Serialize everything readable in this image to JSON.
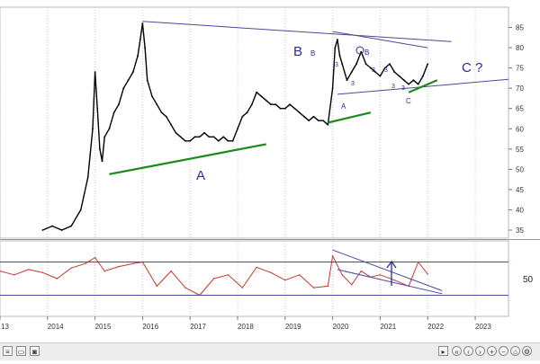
{
  "chart_data": [
    {
      "type": "line",
      "series_type": "candlestick-price",
      "xlim": [
        2013.0,
        2023.7
      ],
      "ylim": [
        33,
        90
      ],
      "y_ticks": [
        35,
        40,
        45,
        50,
        55,
        60,
        65,
        70,
        75,
        80,
        85
      ],
      "grid": "vertical-dotted-at-years",
      "series": [
        {
          "color": "#000000",
          "x": [
            2013.9,
            2014.1,
            2014.3,
            2014.5,
            2014.7,
            2014.85,
            2014.95,
            2015.0,
            2015.05,
            2015.1,
            2015.15,
            2015.2,
            2015.3,
            2015.4,
            2015.5,
            2015.6,
            2015.7,
            2015.8,
            2015.9,
            2015.95,
            2016.0,
            2016.05,
            2016.1,
            2016.2,
            2016.3,
            2016.4,
            2016.5,
            2016.6,
            2016.7,
            2016.8,
            2016.9,
            2017.0,
            2017.1,
            2017.2,
            2017.3,
            2017.4,
            2017.5,
            2017.6,
            2017.7,
            2017.8,
            2017.9,
            2018.0,
            2018.1,
            2018.2,
            2018.3,
            2018.4,
            2018.5,
            2018.6,
            2018.7,
            2018.8,
            2018.9,
            2019.0,
            2019.1,
            2019.2,
            2019.3,
            2019.4,
            2019.5,
            2019.6,
            2019.7,
            2019.8,
            2019.9,
            2020.0,
            2020.05,
            2020.1,
            2020.15,
            2020.2,
            2020.3,
            2020.4,
            2020.5,
            2020.6,
            2020.7,
            2020.8,
            2020.9,
            2021.0,
            2021.1,
            2021.2,
            2021.3,
            2021.4,
            2021.5,
            2021.6,
            2021.7,
            2021.8,
            2021.9,
            2022.0
          ],
          "y": [
            35,
            36,
            35,
            36,
            40,
            48,
            60,
            74,
            65,
            55,
            52,
            58,
            60,
            64,
            66,
            70,
            72,
            74,
            78,
            82,
            86,
            80,
            72,
            68,
            66,
            64,
            63,
            61,
            59,
            58,
            57,
            57,
            58,
            58,
            59,
            58,
            58,
            57,
            58,
            57,
            57,
            60,
            63,
            64,
            66,
            69,
            68,
            67,
            66,
            66,
            65,
            65,
            66,
            65,
            64,
            63,
            62,
            63,
            62,
            62,
            61,
            70,
            80,
            82,
            78,
            76,
            72,
            74,
            76,
            79,
            76,
            75,
            74,
            73,
            75,
            76,
            74,
            73,
            72,
            71,
            72,
            71,
            73,
            76
          ]
        },
        {
          "color": "#4a4a9a",
          "x": [
            2016.0,
            2022.5
          ],
          "y": [
            86.5,
            81.5
          ]
        },
        {
          "color": "#4a4a9a",
          "x": [
            2020.0,
            2022.0
          ],
          "y": [
            84,
            80
          ]
        },
        {
          "color": "#4a4a9a",
          "x": [
            2020.1,
            2023.7
          ],
          "y": [
            68.5,
            72.2
          ]
        },
        {
          "color": "#1a8a1a",
          "x": [
            2015.3,
            2018.6
          ],
          "y": [
            48.8,
            56.2
          ]
        },
        {
          "color": "#1a8a1a",
          "x": [
            2019.9,
            2020.8
          ],
          "y": [
            61.5,
            64
          ]
        },
        {
          "color": "#1a8a1a",
          "x": [
            2021.6,
            2022.2
          ],
          "y": [
            69,
            72
          ]
        }
      ]
    },
    {
      "type": "line",
      "series_type": "oscillator",
      "xlim": [
        2013.0,
        2023.7
      ],
      "ylim": [
        0,
        100
      ],
      "y_ticks": [
        50
      ],
      "x_ticks": [
        "13",
        "2014",
        "2015",
        "2016",
        "2017",
        "2018",
        "2019",
        "2020",
        "2021",
        "2022",
        "2023"
      ],
      "series": [
        {
          "color": "#c0392b",
          "x": [
            2013.0,
            2013.3,
            2013.6,
            2013.9,
            2014.2,
            2014.5,
            2014.8,
            2015.0,
            2015.2,
            2015.5,
            2015.8,
            2016.0,
            2016.3,
            2016.6,
            2016.9,
            2017.2,
            2017.5,
            2017.8,
            2018.1,
            2018.4,
            2018.7,
            2019.0,
            2019.3,
            2019.6,
            2019.9,
            2020.0,
            2020.2,
            2020.4,
            2020.6,
            2020.8,
            2021.0,
            2021.3,
            2021.6,
            2021.8,
            2022.0
          ],
          "y": [
            60,
            55,
            62,
            58,
            50,
            64,
            70,
            78,
            60,
            66,
            70,
            72,
            40,
            60,
            38,
            28,
            50,
            55,
            38,
            65,
            58,
            48,
            55,
            38,
            40,
            80,
            55,
            42,
            60,
            52,
            55,
            48,
            40,
            72,
            56
          ]
        },
        {
          "color": "#4a4a9a",
          "x": [
            2013.0,
            2023.7
          ],
          "y": [
            72,
            72
          ]
        },
        {
          "color": "#4a4a9a",
          "x": [
            2013.0,
            2023.7
          ],
          "y": [
            28,
            28
          ]
        },
        {
          "color": "#4a4a9a",
          "x": [
            2020.0,
            2022.3
          ],
          "y": [
            88,
            34
          ]
        },
        {
          "color": "#4a4a9a",
          "x": [
            2020.1,
            2022.3
          ],
          "y": [
            62,
            30
          ]
        }
      ]
    }
  ],
  "annotations": {
    "wave_a": "A",
    "wave_b_large": "B",
    "wave_b_small": "B",
    "wave_c_question": "C ?",
    "sub_b": "B",
    "sub_a": "A",
    "sub_c": "C",
    "sub_3_a": "3",
    "sub_3_b": "3",
    "sub_3_c": "3",
    "sub_3_d": "3",
    "sub_3_e": "3",
    "sub_3_f": "3"
  },
  "colors": {
    "price": "#000000",
    "trendline": "#4a4a9a",
    "support": "#1a8a1a",
    "oscillator": "#c0392b",
    "label": "#2b2b9a"
  }
}
